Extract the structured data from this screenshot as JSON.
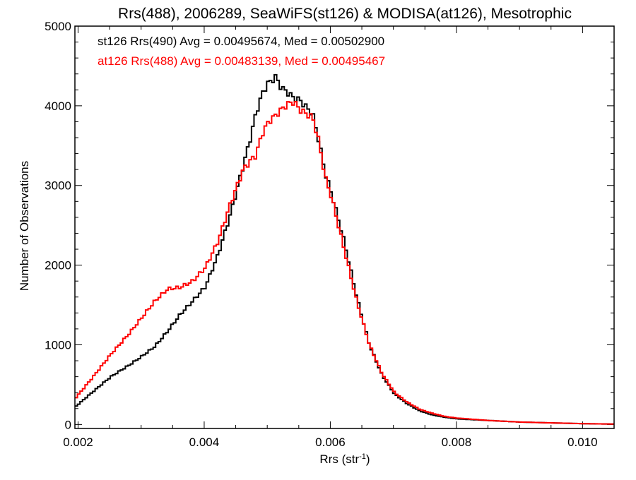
{
  "chart_data": {
    "type": "line",
    "title": "Rrs(488), 2006289, SeaWiFS(st126) & MODISA(at126), Mesotrophic",
    "xlabel": "Rrs (str",
    "xlabel_sup": "-1",
    "xlabel_tail": ")",
    "ylabel": "Number of Observations",
    "xlim": [
      0.00195,
      0.0105
    ],
    "ylim": [
      -50,
      5000
    ],
    "x_ticks": [
      0.002,
      0.004,
      0.006,
      0.008,
      0.01
    ],
    "x_tick_labels": [
      "0.002",
      "0.004",
      "0.006",
      "0.008",
      "0.010"
    ],
    "y_ticks": [
      0,
      1000,
      2000,
      3000,
      4000,
      5000
    ],
    "y_tick_labels": [
      "0",
      "1000",
      "2000",
      "3000",
      "4000",
      "5000"
    ],
    "legend_position": "top-left",
    "step": true,
    "series": [
      {
        "name": "st126 Rrs(490)",
        "label": "st126 Rrs(490) Avg = 0.00495674, Med = 0.00502900",
        "color": "#000000",
        "x": [
          0.00195,
          0.0022,
          0.0025,
          0.0028,
          0.003,
          0.0032,
          0.0034,
          0.0036,
          0.0038,
          0.004,
          0.0042,
          0.0044,
          0.0046,
          0.0047,
          0.0048,
          0.0049,
          0.005,
          0.00505,
          0.0051,
          0.0052,
          0.0053,
          0.0054,
          0.0055,
          0.0056,
          0.0057,
          0.0058,
          0.0059,
          0.006,
          0.0062,
          0.0064,
          0.0066,
          0.0068,
          0.007,
          0.0072,
          0.0074,
          0.0076,
          0.0078,
          0.008,
          0.0085,
          0.009,
          0.0095,
          0.01,
          0.0105
        ],
        "y": [
          230,
          400,
          600,
          750,
          860,
          980,
          1170,
          1380,
          1550,
          1730,
          2130,
          2650,
          3250,
          3550,
          3900,
          4150,
          4300,
          4300,
          4380,
          4230,
          4170,
          4100,
          4070,
          3980,
          3900,
          3550,
          3150,
          2900,
          2300,
          1600,
          1000,
          620,
          380,
          260,
          170,
          120,
          90,
          70,
          50,
          30,
          20,
          10,
          5
        ]
      },
      {
        "name": "at126 Rrs(488)",
        "label": "at126 Rrs(488) Avg = 0.00483139, Med = 0.00495467",
        "color": "#ff0000",
        "x": [
          0.00195,
          0.0022,
          0.0025,
          0.0028,
          0.003,
          0.0032,
          0.0034,
          0.0036,
          0.0038,
          0.004,
          0.0042,
          0.0044,
          0.0046,
          0.0047,
          0.0048,
          0.0049,
          0.005,
          0.0051,
          0.0052,
          0.0053,
          0.0054,
          0.0055,
          0.0056,
          0.0057,
          0.0058,
          0.0059,
          0.006,
          0.0062,
          0.0064,
          0.0066,
          0.0068,
          0.007,
          0.0072,
          0.0074,
          0.0076,
          0.0078,
          0.008,
          0.0085,
          0.009,
          0.0095,
          0.01,
          0.0105
        ],
        "y": [
          340,
          580,
          880,
          1150,
          1350,
          1550,
          1700,
          1720,
          1800,
          1970,
          2300,
          2780,
          3200,
          3300,
          3380,
          3650,
          3800,
          3870,
          3950,
          4020,
          4050,
          3950,
          3900,
          3850,
          3550,
          3100,
          2850,
          2200,
          1550,
          1000,
          640,
          400,
          280,
          190,
          140,
          100,
          80,
          50,
          30,
          20,
          10,
          5
        ]
      }
    ]
  }
}
